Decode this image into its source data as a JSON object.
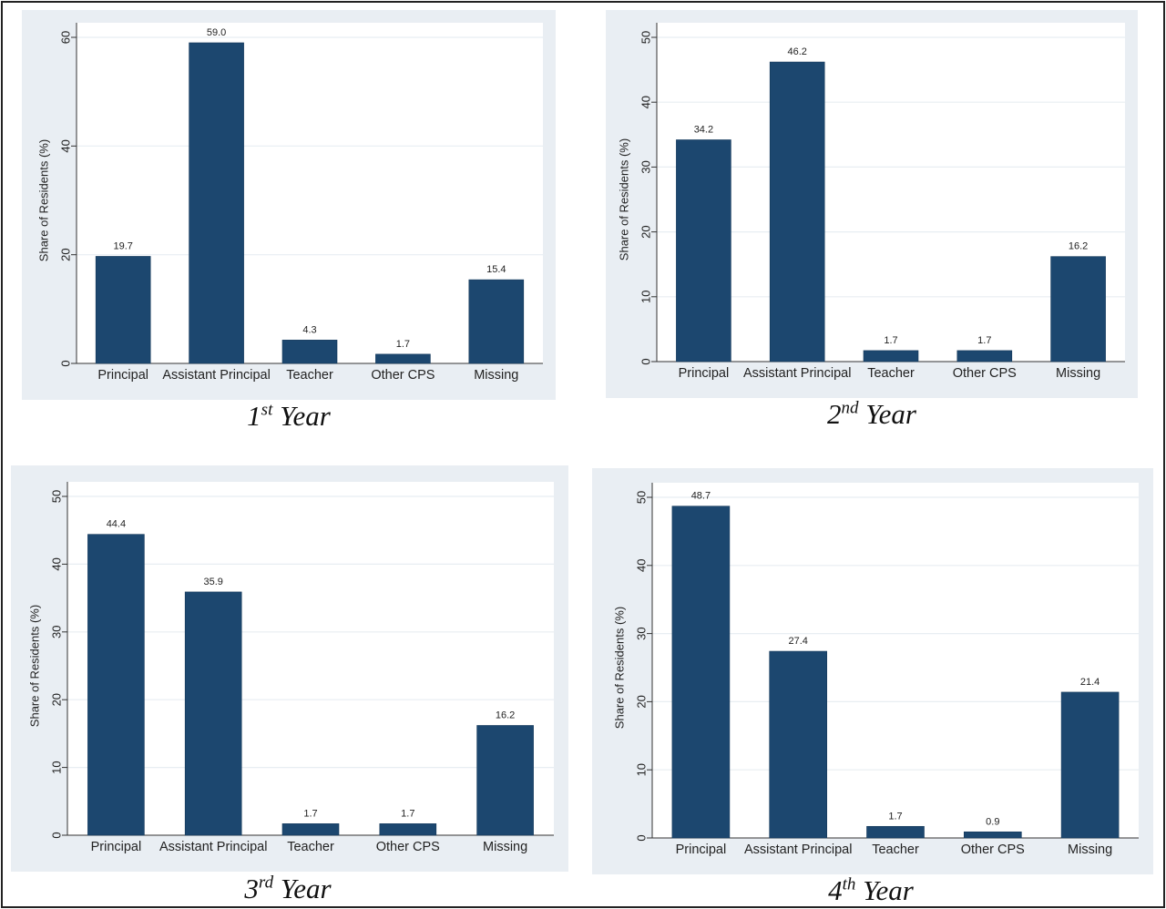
{
  "charts": [
    {
      "caption": {
        "num": "1",
        "suffix": "st",
        "word": "Year"
      },
      "chart_data": {
        "type": "bar",
        "categories": [
          "Principal",
          "Assistant Principal",
          "Teacher",
          "Other CPS",
          "Missing"
        ],
        "values": [
          19.7,
          59.0,
          4.3,
          1.7,
          15.4
        ],
        "value_labels": [
          "19.7",
          "59.0",
          "4.3",
          "1.7",
          "15.4"
        ],
        "title": "",
        "xlabel": "",
        "ylabel": "Share of Residents (%)",
        "ylim": [
          0,
          60
        ],
        "yticks": [
          0,
          20,
          40,
          60
        ],
        "grid": true
      }
    },
    {
      "caption": {
        "num": "2",
        "suffix": "nd",
        "word": "Year"
      },
      "chart_data": {
        "type": "bar",
        "categories": [
          "Principal",
          "Assistant Principal",
          "Teacher",
          "Other CPS",
          "Missing"
        ],
        "values": [
          34.2,
          46.2,
          1.7,
          1.7,
          16.2
        ],
        "value_labels": [
          "34.2",
          "46.2",
          "1.7",
          "1.7",
          "16.2"
        ],
        "title": "",
        "xlabel": "",
        "ylabel": "Share of Residents (%)",
        "ylim": [
          0,
          50
        ],
        "yticks": [
          0,
          10,
          20,
          30,
          40,
          50
        ],
        "grid": true
      }
    },
    {
      "caption": {
        "num": "3",
        "suffix": "rd",
        "word": "Year"
      },
      "chart_data": {
        "type": "bar",
        "categories": [
          "Principal",
          "Assistant Principal",
          "Teacher",
          "Other CPS",
          "Missing"
        ],
        "values": [
          44.4,
          35.9,
          1.7,
          1.7,
          16.2
        ],
        "value_labels": [
          "44.4",
          "35.9",
          "1.7",
          "1.7",
          "16.2"
        ],
        "title": "",
        "xlabel": "",
        "ylabel": "Share of Residents (%)",
        "ylim": [
          0,
          50
        ],
        "yticks": [
          0,
          10,
          20,
          30,
          40,
          50
        ],
        "grid": true
      }
    },
    {
      "caption": {
        "num": "4",
        "suffix": "th",
        "word": "Year"
      },
      "chart_data": {
        "type": "bar",
        "categories": [
          "Principal",
          "Assistant Principal",
          "Teacher",
          "Other CPS",
          "Missing"
        ],
        "values": [
          48.7,
          27.4,
          1.7,
          0.9,
          21.4
        ],
        "value_labels": [
          "48.7",
          "27.4",
          "1.7",
          "0.9",
          "21.4"
        ],
        "title": "",
        "xlabel": "",
        "ylabel": "Share of Residents (%)",
        "ylim": [
          0,
          50
        ],
        "yticks": [
          0,
          10,
          20,
          30,
          40,
          50
        ],
        "grid": true
      }
    }
  ],
  "colors": {
    "bar": "#1c476f",
    "panel_background": "#e9eef3",
    "plot_background": "#ffffff",
    "gridline": "#e8eef2",
    "axis": "#333333"
  }
}
